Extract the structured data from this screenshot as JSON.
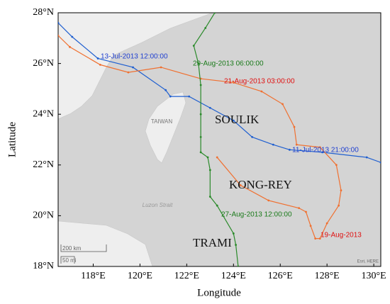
{
  "chart_data": {
    "type": "line",
    "xlabel": "Longitude",
    "ylabel": "Latitude",
    "xlim": [
      116.5,
      130.3
    ],
    "ylim": [
      18,
      28
    ],
    "xticks": [
      {
        "value": 118,
        "label": "118°E"
      },
      {
        "value": 120,
        "label": "120°E"
      },
      {
        "value": 122,
        "label": "122°E"
      },
      {
        "value": 124,
        "label": "124°E"
      },
      {
        "value": 126,
        "label": "126°E"
      },
      {
        "value": 128,
        "label": "128°E"
      },
      {
        "value": 130,
        "label": "130°E"
      }
    ],
    "yticks": [
      {
        "value": 18,
        "label": "18°N"
      },
      {
        "value": 20,
        "label": "20°N"
      },
      {
        "value": 22,
        "label": "22°N"
      },
      {
        "value": 24,
        "label": "24°N"
      },
      {
        "value": 26,
        "label": "26°N"
      },
      {
        "value": 28,
        "label": "28°N"
      }
    ],
    "series": [
      {
        "name": "SOULIK",
        "color": "#1f5fd0",
        "x": [
          116.5,
          117.1,
          118.2,
          119.7,
          121.1,
          121.3,
          122.1,
          123.0,
          124.0,
          124.8,
          125.7,
          126.4,
          127.8,
          129.7,
          130.3
        ],
        "y": [
          27.6,
          27.05,
          26.2,
          25.85,
          24.95,
          24.7,
          24.7,
          24.25,
          23.75,
          23.1,
          22.8,
          22.6,
          22.5,
          22.3,
          22.1
        ]
      },
      {
        "name": "KONG-REY",
        "color": "#f07030",
        "x": [
          123.3,
          124.3,
          125.5,
          126.8,
          127.1,
          127.3,
          127.5,
          127.7,
          128.0,
          128.5,
          128.6,
          128.4,
          127.7,
          126.7,
          126.6,
          126.1,
          125.2,
          124.0,
          122.6,
          120.9,
          119.5,
          118.3,
          117.0,
          116.5
        ],
        "y": [
          22.3,
          21.2,
          20.6,
          20.3,
          20.15,
          19.6,
          19.1,
          19.1,
          19.7,
          20.4,
          21.0,
          22.0,
          22.7,
          22.8,
          23.5,
          24.4,
          24.9,
          25.25,
          25.4,
          25.85,
          25.65,
          25.95,
          26.65,
          27.1
        ]
      },
      {
        "name": "TRAMI",
        "color": "#2a8a2a",
        "x": [
          123.2,
          122.8,
          122.3,
          122.5,
          122.6,
          122.6,
          122.6,
          122.6,
          122.9,
          123.0,
          123.0,
          123.3,
          124.0,
          124.1,
          124.2
        ],
        "y": [
          28.0,
          27.4,
          26.7,
          26.0,
          25.15,
          24.0,
          23.1,
          22.5,
          22.3,
          21.8,
          20.75,
          20.4,
          19.3,
          18.85,
          18.0
        ]
      }
    ],
    "annotations": [
      {
        "text": "13-Jul-2013 12:00:00",
        "color": "#1f3fd0"
      },
      {
        "text": "29-Aug-2013 06:00:00",
        "color": "#1a7a1a"
      },
      {
        "text": "21-Aug-2013 03:00:00",
        "color": "#e01010"
      },
      {
        "text": "11-Jul-2013 21:00:00",
        "color": "#1f3fd0"
      },
      {
        "text": "27-Aug-2013 12:00:00",
        "color": "#1a7a1a"
      },
      {
        "text": "19-Aug-2013",
        "color": "#e01010"
      }
    ],
    "map_labels": [
      "TAIWAN",
      "Luzon Strait"
    ],
    "scale_bar": [
      "200 km",
      "50 mi"
    ],
    "attribution": "Esri, HERE"
  }
}
